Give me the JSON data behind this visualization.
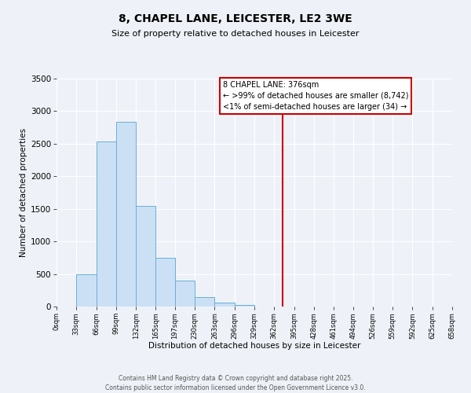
{
  "title": "8, CHAPEL LANE, LEICESTER, LE2 3WE",
  "subtitle": "Size of property relative to detached houses in Leicester",
  "xlabel": "Distribution of detached houses by size in Leicester",
  "ylabel": "Number of detached properties",
  "bar_edges": [
    0,
    33,
    66,
    99,
    132,
    165,
    197,
    230,
    263,
    296,
    329,
    362,
    395,
    428,
    461,
    494,
    526,
    559,
    592,
    625,
    658
  ],
  "bar_heights": [
    0,
    490,
    2530,
    2840,
    1540,
    750,
    395,
    145,
    55,
    20,
    0,
    0,
    0,
    0,
    0,
    0,
    0,
    0,
    0,
    0
  ],
  "tick_labels": [
    "0sqm",
    "33sqm",
    "66sqm",
    "99sqm",
    "132sqm",
    "165sqm",
    "197sqm",
    "230sqm",
    "263sqm",
    "296sqm",
    "329sqm",
    "362sqm",
    "395sqm",
    "428sqm",
    "461sqm",
    "494sqm",
    "526sqm",
    "559sqm",
    "592sqm",
    "625sqm",
    "658sqm"
  ],
  "bar_facecolor": "#cce0f5",
  "bar_edgecolor": "#6aaed6",
  "vline_x": 376,
  "vline_color": "#cc0000",
  "vline_label": "8 CHAPEL LANE: 376sqm",
  "annotation_line1": "← >99% of detached houses are smaller (8,742)",
  "annotation_line2": "<1% of semi-detached houses are larger (34) →",
  "box_facecolor": "#ffffff",
  "box_edgecolor": "#cc0000",
  "ylim": [
    0,
    3500
  ],
  "xlim": [
    0,
    658
  ],
  "background_color": "#eef2f8",
  "grid_color": "#ffffff",
  "footer1": "Contains HM Land Registry data © Crown copyright and database right 2025.",
  "footer2": "Contains public sector information licensed under the Open Government Licence v3.0."
}
